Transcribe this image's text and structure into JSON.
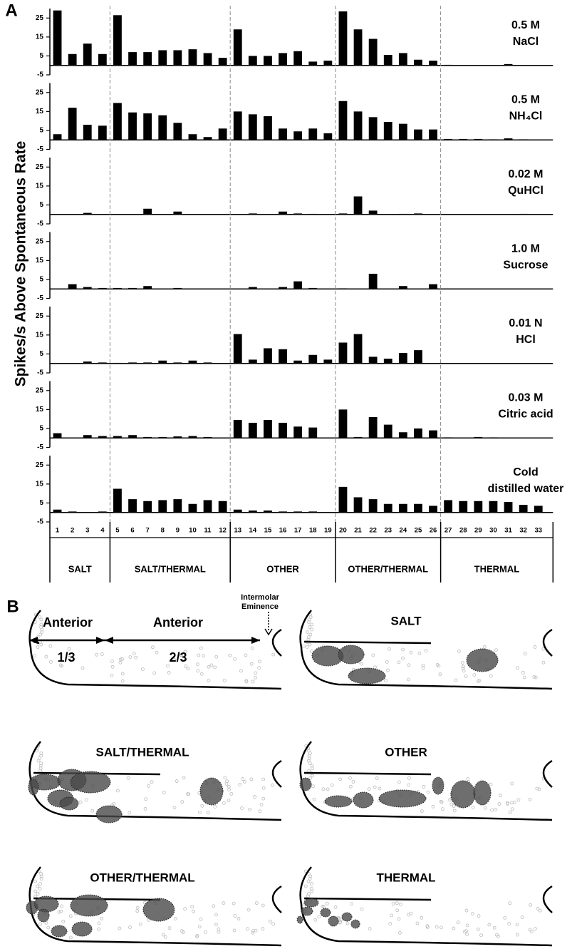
{
  "panel_a_label": "A",
  "ylabel": "Spikes/s Above Spontaneous Rate",
  "chart_data": [
    {
      "type": "bar",
      "title": [
        "0.5 M",
        "NaCl"
      ],
      "color": "#000000",
      "ylim": [
        -5,
        30
      ],
      "yticks": [
        -5,
        5,
        15,
        25
      ],
      "values": [
        29,
        6,
        11.5,
        6,
        26.5,
        7,
        7,
        8,
        8,
        8.5,
        6.5,
        4,
        19,
        5,
        5,
        6.5,
        7.5,
        2,
        2.5,
        28.5,
        19,
        14,
        5.5,
        6.5,
        3,
        2.5,
        0.3,
        0.2,
        0.2,
        0.2,
        0.7,
        0.2,
        0.2
      ]
    },
    {
      "type": "bar",
      "title": [
        "0.5 M",
        "NH₄Cl"
      ],
      "color": "#000000",
      "ylim": [
        -5,
        30
      ],
      "yticks": [
        -5,
        5,
        15,
        25
      ],
      "values": [
        3,
        17,
        8,
        7.5,
        19.5,
        14.5,
        14,
        13,
        9,
        3,
        1.5,
        6,
        15,
        13.5,
        12.5,
        6,
        4.5,
        6,
        3.5,
        20.5,
        15,
        12,
        9.5,
        8.5,
        5.5,
        5.5,
        0.5,
        0.5,
        0.5,
        0.3,
        0.8,
        0.3,
        0.2
      ]
    },
    {
      "type": "bar",
      "title": [
        "0.02 M",
        "QuHCl"
      ],
      "color": "#000000",
      "ylim": [
        -5,
        30
      ],
      "yticks": [
        -5,
        5,
        15,
        25
      ],
      "values": [
        0,
        0,
        0.8,
        0.2,
        0,
        0.2,
        3,
        0.2,
        1.5,
        0.2,
        0,
        0,
        0.2,
        0.5,
        0,
        1.5,
        0.5,
        0.3,
        0.2,
        0.5,
        9.5,
        2,
        0.2,
        0.3,
        0.5,
        0,
        0.1,
        0.1,
        0.1,
        0.1,
        0.1,
        0.3,
        0.1
      ]
    },
    {
      "type": "bar",
      "title": [
        "1.0 M",
        "Sucrose"
      ],
      "color": "#000000",
      "ylim": [
        -5,
        30
      ],
      "yticks": [
        -5,
        5,
        15,
        25
      ],
      "values": [
        0,
        2.5,
        1,
        0.5,
        0.5,
        0.5,
        1.5,
        0,
        0.5,
        0.2,
        0,
        0,
        0.2,
        1,
        0,
        1,
        4,
        0.5,
        0,
        0.3,
        0,
        8,
        0,
        1.5,
        0.2,
        2.5,
        0,
        0,
        0,
        0,
        0,
        0,
        0
      ]
    },
    {
      "type": "bar",
      "title": [
        "0.01 N",
        "HCl"
      ],
      "color": "#000000",
      "ylim": [
        -5,
        30
      ],
      "yticks": [
        -5,
        5,
        15,
        25
      ],
      "values": [
        0.2,
        0.2,
        1,
        0.5,
        0.3,
        0.5,
        0.5,
        1.5,
        0.5,
        1.5,
        0.5,
        0,
        15.5,
        2,
        8,
        7.5,
        1.5,
        4.5,
        2,
        11,
        15.5,
        3.5,
        2.5,
        5.5,
        7,
        0,
        0,
        0,
        0,
        0,
        0,
        0,
        0
      ]
    },
    {
      "type": "bar",
      "title": [
        "0.03 M",
        "Citric acid"
      ],
      "color": "#000000",
      "ylim": [
        -5,
        30
      ],
      "yticks": [
        -5,
        5,
        15,
        25
      ],
      "values": [
        2.5,
        0.2,
        1.5,
        1,
        1,
        1.5,
        0.5,
        0.5,
        0.8,
        1,
        0.5,
        0.2,
        9.5,
        8,
        9.5,
        8,
        6,
        5.5,
        0.2,
        15,
        0.5,
        11,
        7,
        3,
        5,
        4,
        0.3,
        0.2,
        0.5,
        0.3,
        0,
        0,
        0
      ]
    },
    {
      "type": "bar",
      "title": [
        "Cold",
        "distilled water"
      ],
      "color": "#000000",
      "ylim": [
        -5,
        30
      ],
      "yticks": [
        -5,
        5,
        15,
        25
      ],
      "values": [
        1.5,
        0.5,
        0,
        0.5,
        12.5,
        7,
        6,
        6.5,
        7,
        4.5,
        6.5,
        6,
        1.5,
        1,
        1,
        0.5,
        0.5,
        0.5,
        0,
        13.5,
        8,
        7,
        4.5,
        4.5,
        4.5,
        3.5,
        6.5,
        6,
        6,
        6,
        5.5,
        4,
        3.5
      ],
      "categories": [
        "1",
        "2",
        "3",
        "4",
        "5",
        "6",
        "7",
        "8",
        "9",
        "10",
        "11",
        "12",
        "13",
        "14",
        "15",
        "16",
        "17",
        "18",
        "19",
        "20",
        "21",
        "22",
        "23",
        "24",
        "25",
        "26",
        "27",
        "28",
        "29",
        "30",
        "31",
        "32",
        "33"
      ],
      "groups": [
        "SALT",
        "SALT/THERMAL",
        "OTHER",
        "OTHER/THERMAL",
        "THERMAL"
      ]
    }
  ],
  "panel_b": {
    "label": "B",
    "eminence": [
      "Intermolar",
      "Eminence"
    ],
    "anterior_left": "Anterior",
    "fraction_left": "1/3",
    "anterior_right": "Anterior",
    "fraction_right": "2/3",
    "titles": [
      "SALT",
      "SALT/THERMAL",
      "OTHER",
      "OTHER/THERMAL",
      "THERMAL"
    ]
  }
}
